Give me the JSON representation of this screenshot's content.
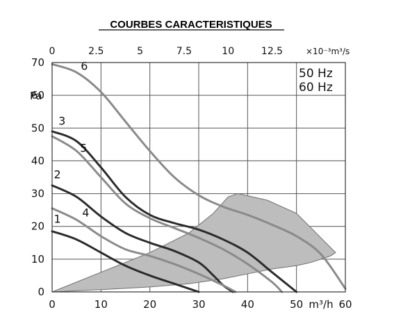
{
  "chart_data": {
    "type": "line",
    "title": "COURBES CARACTERISTIQUES",
    "xlabel": "m³/h",
    "ylabel": "Pa",
    "xlim": [
      0,
      60
    ],
    "ylim": [
      0,
      70
    ],
    "x_ticks": [
      "0",
      "10",
      "20",
      "30",
      "40",
      "50",
      "60"
    ],
    "y_ticks": [
      "0",
      "10",
      "20",
      "30",
      "40",
      "50",
      "60",
      "70"
    ],
    "secondary_x": {
      "label": "×10⁻³m³/s",
      "ticks": [
        "0",
        "2.5",
        "5",
        "7.5",
        "10",
        "12.5"
      ]
    },
    "grid": true,
    "legend_text": [
      "50 Hz",
      "60 Hz"
    ],
    "colors": {
      "dark": "#2b2b2b",
      "light": "#8a8a8a",
      "zone_fill": "#bdbdbd",
      "zone_stroke": "#6f6f6f"
    },
    "shaded_zone": {
      "x": [
        0,
        10,
        20,
        28,
        33,
        36,
        38,
        44,
        50,
        58,
        57,
        55,
        53,
        50,
        45,
        40,
        35,
        28,
        20,
        10,
        0
      ],
      "y": [
        0,
        6,
        12,
        18,
        24,
        29,
        30,
        28,
        24,
        12,
        11,
        10,
        9,
        8,
        7,
        5.5,
        4,
        2.5,
        1.5,
        0.7,
        0
      ]
    },
    "series": [
      {
        "name": "1",
        "color_key": "dark",
        "x": [
          0,
          5,
          10,
          15,
          20,
          25,
          28,
          30
        ],
        "y": [
          18.5,
          16,
          12,
          8,
          5,
          2.5,
          1,
          0
        ]
      },
      {
        "name": "2",
        "color_key": "dark",
        "x": [
          0,
          5,
          10,
          15,
          20,
          25,
          30,
          33,
          35,
          37
        ],
        "y": [
          32.5,
          29,
          23,
          18,
          15,
          12.5,
          9,
          5,
          2,
          0
        ]
      },
      {
        "name": "3",
        "color_key": "dark",
        "x": [
          0,
          5,
          10,
          15,
          20,
          25,
          30,
          35,
          40,
          45,
          50
        ],
        "y": [
          49,
          46,
          38,
          29,
          23.5,
          21,
          19,
          16,
          12,
          6,
          0
        ]
      },
      {
        "name": "4",
        "color_key": "light",
        "x": [
          0,
          5,
          10,
          15,
          20,
          25,
          30,
          35,
          37.5
        ],
        "y": [
          25.5,
          22,
          17,
          13,
          11,
          8.5,
          5.5,
          2,
          0
        ]
      },
      {
        "name": "5",
        "color_key": "light",
        "x": [
          0,
          5,
          10,
          15,
          20,
          25,
          30,
          35,
          40,
          45,
          47
        ],
        "y": [
          47.5,
          43,
          35,
          27,
          22.5,
          19.5,
          16.5,
          13,
          8.5,
          3,
          0
        ]
      },
      {
        "name": "6",
        "color_key": "light",
        "x": [
          0,
          5,
          10,
          15,
          20,
          25,
          30,
          35,
          40,
          45,
          50,
          55,
          60
        ],
        "y": [
          69.5,
          67,
          61,
          52,
          43,
          35,
          29.5,
          26,
          23.5,
          20.5,
          17,
          11.5,
          1
        ]
      }
    ]
  }
}
